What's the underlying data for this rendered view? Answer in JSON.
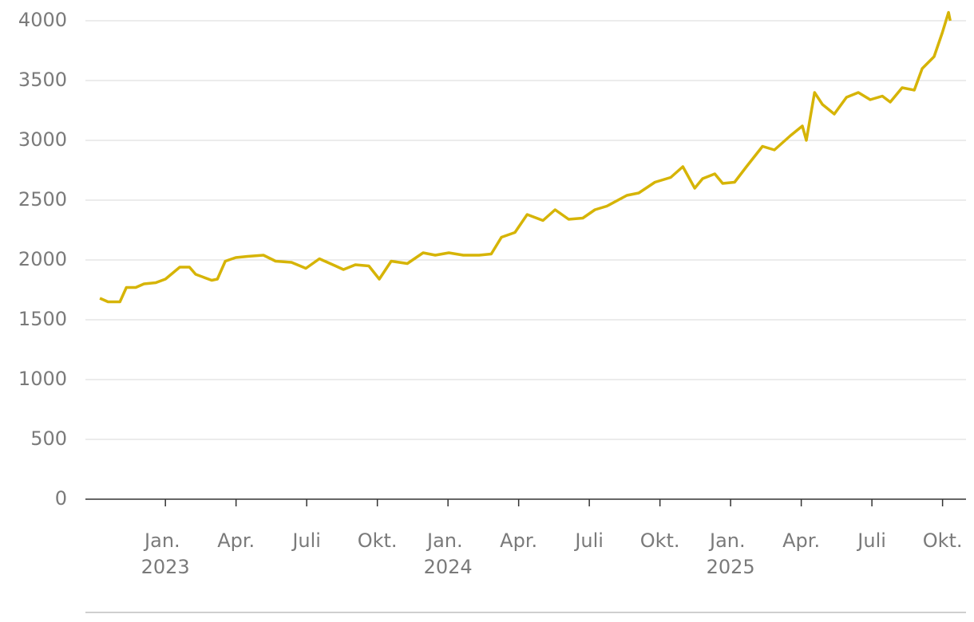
{
  "chart_data": {
    "type": "line",
    "x": [
      2022.768,
      2022.797,
      2022.839,
      2022.862,
      2022.895,
      2022.924,
      2022.966,
      2023.0,
      2023.051,
      2023.085,
      2023.107,
      2023.164,
      2023.184,
      2023.212,
      2023.249,
      2023.291,
      2023.347,
      2023.39,
      2023.446,
      2023.497,
      2023.545,
      2023.602,
      2023.63,
      2023.672,
      2023.72,
      2023.757,
      2023.799,
      2023.856,
      2023.912,
      2023.955,
      2024.003,
      2024.054,
      2024.11,
      2024.153,
      2024.189,
      2024.237,
      2024.28,
      2024.336,
      2024.379,
      2024.427,
      2024.477,
      2024.52,
      2024.562,
      2024.633,
      2024.675,
      2024.732,
      2024.788,
      2024.831,
      2024.873,
      2024.901,
      2024.944,
      2024.972,
      2025.014,
      2025.056,
      2025.113,
      2025.155,
      2025.212,
      2025.254,
      2025.268,
      2025.297,
      2025.325,
      2025.367,
      2025.41,
      2025.452,
      2025.494,
      2025.537,
      2025.565,
      2025.607,
      2025.65,
      2025.678,
      2025.72,
      2025.749,
      2025.771,
      2025.777
    ],
    "values": [
      1680,
      1650,
      1650,
      1770,
      1770,
      1800,
      1810,
      1840,
      1940,
      1940,
      1880,
      1830,
      1840,
      1990,
      2020,
      2030,
      2040,
      1990,
      1980,
      1930,
      2010,
      1950,
      1920,
      1960,
      1950,
      1840,
      1990,
      1970,
      2060,
      2040,
      2060,
      2040,
      2040,
      2050,
      2190,
      2230,
      2380,
      2330,
      2420,
      2340,
      2350,
      2420,
      2450,
      2540,
      2560,
      2650,
      2690,
      2780,
      2600,
      2680,
      2720,
      2640,
      2650,
      2780,
      2950,
      2920,
      3040,
      3120,
      3000,
      3400,
      3300,
      3220,
      3360,
      3400,
      3340,
      3370,
      3320,
      3440,
      3420,
      3600,
      3700,
      3900,
      4070,
      4000
    ],
    "color": "#d6b406",
    "xlim": [
      2022.717,
      2025.833
    ],
    "xticks": [
      {
        "value": 2023.0,
        "label": "Jan. 2023"
      },
      {
        "value": 2023.25,
        "label": "Apr."
      },
      {
        "value": 2023.5,
        "label": "Juli"
      },
      {
        "value": 2023.75,
        "label": "Okt."
      },
      {
        "value": 2024.0,
        "label": "Jan. 2024"
      },
      {
        "value": 2024.25,
        "label": "Apr."
      },
      {
        "value": 2024.5,
        "label": "Juli"
      },
      {
        "value": 2024.75,
        "label": "Okt."
      },
      {
        "value": 2025.0,
        "label": "Jan. 2025"
      },
      {
        "value": 2025.25,
        "label": "Apr."
      },
      {
        "value": 2025.5,
        "label": "Juli"
      },
      {
        "value": 2025.75,
        "label": "Okt."
      }
    ],
    "ylim": [
      0,
      4000
    ],
    "yticks": [
      0,
      500,
      1000,
      1500,
      2000,
      2500,
      3000,
      3500,
      4000
    ],
    "grid": true
  }
}
